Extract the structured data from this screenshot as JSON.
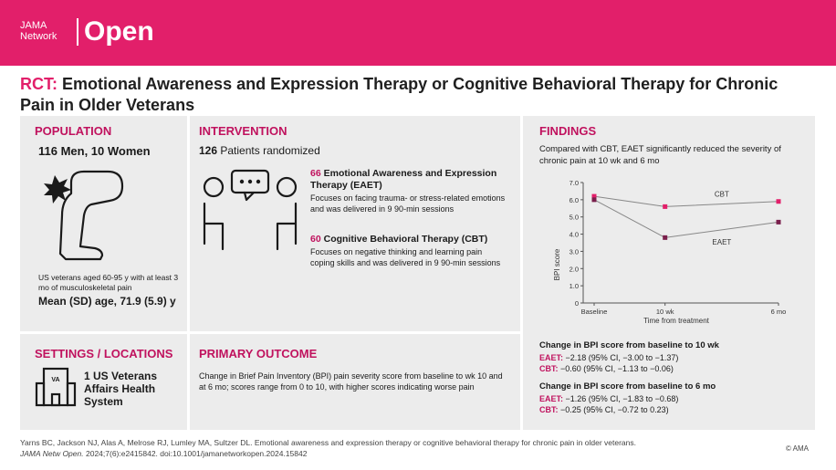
{
  "header": {
    "brand_line1": "JAMA",
    "brand_line2": "Network",
    "brand_big": "Open",
    "color": "#e21f6a"
  },
  "title": {
    "prefix": "RCT:",
    "text": "Emotional Awareness and Expression Therapy or Cognitive Behavioral Therapy for Chronic Pain in Older Veterans"
  },
  "population": {
    "heading": "POPULATION",
    "count": "116 Men, 10 Women",
    "description": "US veterans aged 60-95 y with at least 3 mo of musculoskeletal pain",
    "age": "Mean (SD) age, 71.9 (5.9) y",
    "icon": "knee-pain-icon"
  },
  "intervention": {
    "heading": "INTERVENTION",
    "randomized_count": "126",
    "randomized_text": "Patients randomized",
    "arms": [
      {
        "n": "66",
        "name": "Emotional Awareness and Expression Therapy (EAET)",
        "desc": "Focuses on facing trauma- or stress-related emotions and was delivered in 9 90-min sessions"
      },
      {
        "n": "60",
        "name": "Cognitive Behavioral Therapy (CBT)",
        "desc": "Focuses on negative thinking and learning pain coping skills and was delivered in 9 90-min sessions"
      }
    ],
    "icon": "therapy-conversation-icon"
  },
  "findings": {
    "heading": "FINDINGS",
    "intro": "Compared with CBT, EAET significantly reduced the severity of chronic pain at 10 wk and 6 mo",
    "changes": [
      {
        "title": "Change in BPI score from baseline to 10 wk",
        "rows": [
          {
            "label": "EAET:",
            "value": "−2.18 (95% CI, −3.00 to −1.37)"
          },
          {
            "label": "CBT:",
            "value": "−0.60 (95% CI, −1.13 to −0.06)"
          }
        ]
      },
      {
        "title": "Change in BPI score from baseline to 6 mo",
        "rows": [
          {
            "label": "EAET:",
            "value": "−1.26 (95% CI, −1.83 to −0.68)"
          },
          {
            "label": "CBT:",
            "value": "−0.25 (95% CI, −0.72 to 0.23)"
          }
        ]
      }
    ]
  },
  "settings": {
    "heading": "SETTINGS / LOCATIONS",
    "text": "1 US Veterans Affairs Health System",
    "icon_label": "VA"
  },
  "primary_outcome": {
    "heading": "PRIMARY OUTCOME",
    "text": "Change in Brief Pain Inventory (BPI) pain severity score from baseline to wk 10 and at 6 mo; scores range from 0 to 10, with higher scores indicating worse pain"
  },
  "citation": {
    "line1": "Yarns BC, Jackson NJ, Alas A, Melrose RJ, Lumley MA, Sultzer DL. Emotional awareness and expression therapy or cognitive behavioral therapy for chronic pain in older veterans.",
    "journal": "JAMA Netw Open.",
    "line2": "2024;7(6):e2415842. doi:10.1001/jamanetworkopen.2024.15842",
    "copyright": "© AMA"
  },
  "chart_data": {
    "type": "line",
    "xlabel": "Time from treatment",
    "ylabel": "BPI score",
    "ylim": [
      0,
      7
    ],
    "yticks": [
      0,
      "1.0",
      "2.0",
      "3.0",
      "4.0",
      "5.0",
      "6.0",
      "7.0"
    ],
    "categories": [
      "Baseline",
      "10 wk",
      "6 mo"
    ],
    "x": [
      0,
      10,
      26
    ],
    "series": [
      {
        "name": "CBT",
        "values": [
          6.2,
          5.6,
          5.9
        ],
        "color": "#e21f6a"
      },
      {
        "name": "EAET",
        "values": [
          6.0,
          3.8,
          4.7
        ],
        "color": "#7a1f4c"
      }
    ]
  }
}
